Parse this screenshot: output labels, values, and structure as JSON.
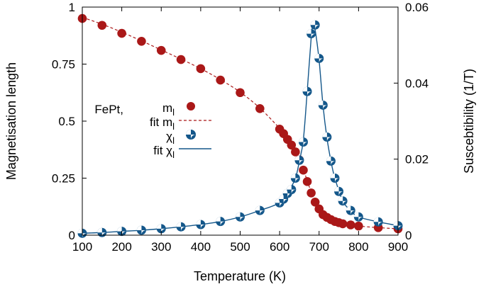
{
  "chart_data": {
    "type": "scatter",
    "title": "",
    "xlabel": "Temperature (K)",
    "ylabel": "Magnetisation length",
    "y2label": "Suscebtibility (1/T)",
    "xlim": [
      100,
      900
    ],
    "ylim": [
      0,
      1
    ],
    "y2lim": [
      0,
      0.06
    ],
    "xticks": [
      100,
      200,
      300,
      400,
      500,
      600,
      700,
      800,
      900
    ],
    "yticks": [
      0,
      0.25,
      0.5,
      0.75,
      1
    ],
    "ytick_labels": [
      "0",
      "0.25",
      "0.5",
      "0.75",
      "1"
    ],
    "y2ticks": [
      0,
      0.02,
      0.04,
      0.06
    ],
    "y2tick_labels": [
      "0",
      "0.02",
      "0.04",
      "0.06"
    ],
    "grid": false,
    "legend": {
      "position": "right-middle",
      "material": "FePt,",
      "entries": [
        {
          "label": "m",
          "subscript": "l",
          "style": "points"
        },
        {
          "label": "fit m",
          "subscript": "l",
          "style": "dashed-line"
        },
        {
          "label": "χ",
          "subscript": "l",
          "style": "half-points"
        },
        {
          "label": "fit χ",
          "subscript": "l",
          "style": "line"
        }
      ]
    },
    "colors": {
      "magnetisation": "#aa1818",
      "susceptibility": "#14578a"
    },
    "series": [
      {
        "name": "m_l",
        "axis": "y1",
        "x": [
          100,
          150,
          200,
          250,
          300,
          350,
          400,
          450,
          500,
          550,
          600,
          610,
          620,
          630,
          640,
          650,
          660,
          670,
          680,
          690,
          700,
          710,
          720,
          730,
          740,
          750,
          760,
          780,
          800,
          850,
          900
        ],
        "y": [
          0.95,
          0.92,
          0.885,
          0.85,
          0.81,
          0.77,
          0.73,
          0.68,
          0.625,
          0.555,
          0.465,
          0.445,
          0.42,
          0.395,
          0.365,
          0.33,
          0.285,
          0.235,
          0.185,
          0.145,
          0.115,
          0.09,
          0.078,
          0.068,
          0.06,
          0.055,
          0.05,
          0.045,
          0.04,
          0.033,
          0.028
        ]
      },
      {
        "name": "χ_l",
        "axis": "y2",
        "x": [
          100,
          150,
          200,
          250,
          300,
          350,
          400,
          450,
          500,
          550,
          600,
          610,
          620,
          630,
          640,
          650,
          660,
          670,
          680,
          690,
          700,
          710,
          720,
          730,
          740,
          750,
          760,
          780,
          800,
          850,
          900
        ],
        "y": [
          0.0005,
          0.0007,
          0.001,
          0.0013,
          0.0017,
          0.0022,
          0.0028,
          0.0036,
          0.0048,
          0.0065,
          0.0085,
          0.0095,
          0.011,
          0.012,
          0.015,
          0.0197,
          0.0245,
          0.0378,
          0.053,
          0.0553,
          0.0465,
          0.0342,
          0.0258,
          0.0195,
          0.015,
          0.0115,
          0.009,
          0.0065,
          0.0048,
          0.0035,
          0.0025
        ]
      },
      {
        "name": "fit m_l",
        "axis": "y1",
        "style": "dashed",
        "x": [
          100,
          150,
          200,
          250,
          300,
          350,
          400,
          450,
          500,
          550,
          600,
          620,
          640,
          660,
          680,
          700,
          720,
          740,
          760,
          780,
          800,
          850,
          900
        ],
        "y": [
          0.955,
          0.925,
          0.89,
          0.852,
          0.812,
          0.772,
          0.73,
          0.682,
          0.627,
          0.557,
          0.468,
          0.423,
          0.368,
          0.288,
          0.19,
          0.117,
          0.078,
          0.06,
          0.05,
          0.045,
          0.04,
          0.033,
          0.028
        ]
      },
      {
        "name": "fit χ_l",
        "axis": "y2",
        "style": "solid",
        "x": [
          100,
          150,
          200,
          250,
          300,
          350,
          400,
          450,
          500,
          550,
          600,
          620,
          640,
          650,
          660,
          670,
          680,
          685,
          690,
          700,
          710,
          720,
          730,
          740,
          760,
          780,
          800,
          850,
          900
        ],
        "y": [
          0.0005,
          0.0007,
          0.001,
          0.0013,
          0.0017,
          0.0022,
          0.0028,
          0.0036,
          0.0048,
          0.0065,
          0.0085,
          0.011,
          0.015,
          0.0195,
          0.025,
          0.038,
          0.052,
          0.0555,
          0.054,
          0.046,
          0.034,
          0.0255,
          0.0195,
          0.015,
          0.009,
          0.0065,
          0.0048,
          0.0035,
          0.0025
        ]
      }
    ]
  }
}
